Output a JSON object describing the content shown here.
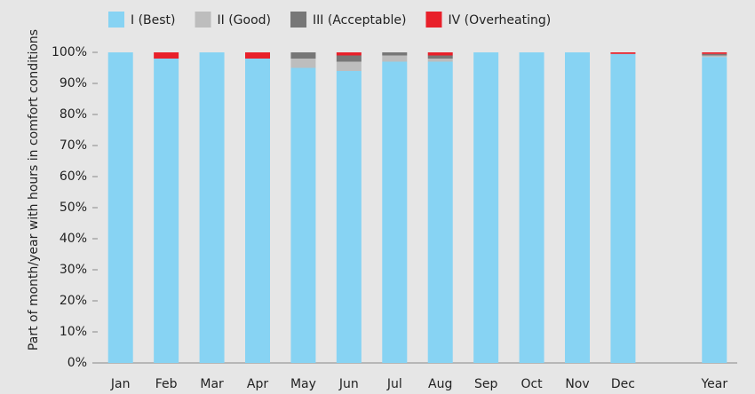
{
  "chart_data": {
    "type": "stacked_bar",
    "y_label": "Part of month/year with hours in comfort conditions",
    "categories": [
      "Jan",
      "Feb",
      "Mar",
      "Apr",
      "May",
      "Jun",
      "Jul",
      "Aug",
      "Sep",
      "Oct",
      "Nov",
      "Dec",
      null,
      "Year"
    ],
    "series": [
      {
        "name": "I (Best)",
        "color": "#87d3f3",
        "values": [
          100,
          98,
          100,
          98,
          95,
          94,
          97,
          97,
          100,
          100,
          100,
          99.5,
          null,
          98.5
        ]
      },
      {
        "name": "II (Good)",
        "color": "#bdbdbd",
        "values": [
          0,
          0,
          0,
          0,
          3,
          3,
          2,
          1,
          0,
          0,
          0,
          0,
          null,
          0.5
        ]
      },
      {
        "name": "III (Acceptable)",
        "color": "#777777",
        "values": [
          0,
          0,
          0,
          0,
          2,
          2,
          1,
          1,
          0,
          0,
          0,
          0,
          null,
          0.5
        ]
      },
      {
        "name": "IV (Overheating)",
        "color": "#e8202a",
        "values": [
          0,
          2,
          0,
          2,
          0,
          1,
          0,
          1,
          0,
          0,
          0,
          0.5,
          null,
          0.5
        ]
      }
    ],
    "ylim": [
      0,
      100
    ],
    "yticks": [
      {
        "value": 0,
        "label": "0%"
      },
      {
        "value": 10,
        "label": "10%"
      },
      {
        "value": 20,
        "label": "20%"
      },
      {
        "value": 30,
        "label": "30%"
      },
      {
        "value": 40,
        "label": "40%"
      },
      {
        "value": 50,
        "label": "50%"
      },
      {
        "value": 60,
        "label": "60%"
      },
      {
        "value": 70,
        "label": "70%"
      },
      {
        "value": 80,
        "label": "80%"
      },
      {
        "value": 90,
        "label": "90%"
      },
      {
        "value": 100,
        "label": "100%"
      }
    ],
    "legend": "top"
  }
}
